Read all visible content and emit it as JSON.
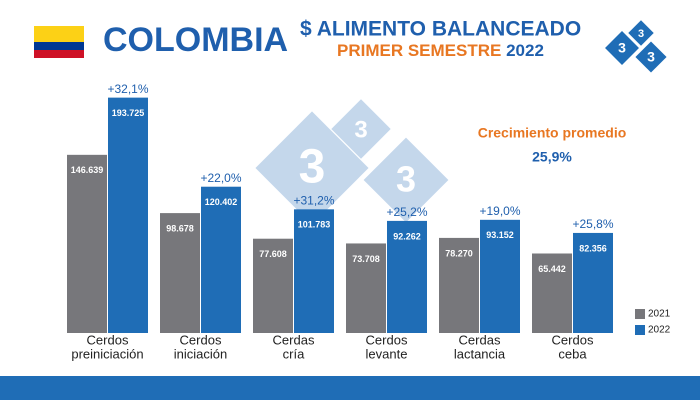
{
  "chart_data": {
    "type": "bar",
    "title": "COLOMBIA",
    "subtitle": "$ ALIMENTO BALANCEADO",
    "period": "PRIMER SEMESTRE",
    "year": "2022",
    "annotation_title": "Crecimiento promedio",
    "annotation_value": "25,9%",
    "categories": [
      [
        "Cerdos",
        "preiniciación"
      ],
      [
        "Cerdos",
        "iniciación"
      ],
      [
        "Cerdas",
        "cría"
      ],
      [
        "Cerdos",
        "levante"
      ],
      [
        "Cerdas",
        "lactancia"
      ],
      [
        "Cerdos",
        "ceba"
      ]
    ],
    "ylim": [
      0,
      200000
    ],
    "legend": "bottom-right",
    "series": [
      {
        "name": "2021",
        "color": "#77777b",
        "values": [
          146639,
          98678,
          77608,
          73708,
          78270,
          65442
        ],
        "value_labels": [
          "146.639",
          "98.678",
          "77.608",
          "73.708",
          "78.270",
          "65.442"
        ]
      },
      {
        "name": "2022",
        "color": "#1f6db6",
        "values": [
          193725,
          120402,
          101783,
          92262,
          93152,
          82356
        ],
        "value_labels": [
          "193.725",
          "120.402",
          "101.783",
          "92.262",
          "93.152",
          "82.356"
        ],
        "change_labels": [
          "+32,1%",
          "+22,0%",
          "+31,2%",
          "+25,2%",
          "+19,0%",
          "+25,8%"
        ]
      }
    ]
  }
}
